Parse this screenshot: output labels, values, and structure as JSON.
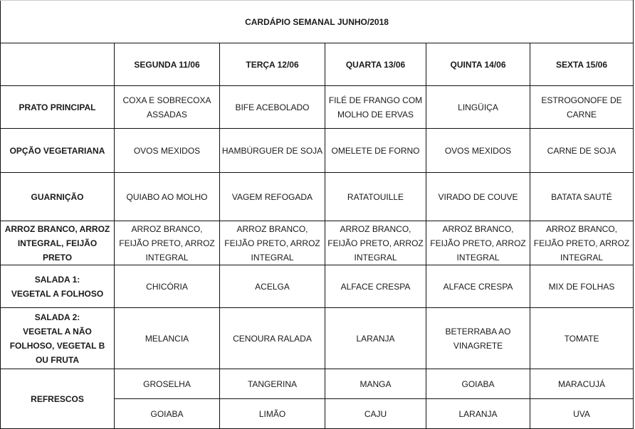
{
  "title": "CARDÁPIO SEMANAL JUNHO/2018",
  "days": [
    "SEGUNDA 11/06",
    "TERÇA 12/06",
    "QUARTA 13/06",
    "QUINTA 14/06",
    "SEXTA 15/06"
  ],
  "rows": [
    {
      "label": "PRATO PRINCIPAL",
      "cells": [
        "COXA E SOBRECOXA\nASSADAS",
        "BIFE ACEBOLADO",
        "FILÉ DE FRANGO COM\nMOLHO DE ERVAS",
        "LINGÜIÇA",
        "ESTROGONOFE DE\nCARNE"
      ]
    },
    {
      "label": "OPÇÃO VEGETARIANA",
      "cells": [
        "OVOS MEXIDOS",
        "HAMBÚRGUER DE SOJA",
        "OMELETE DE FORNO",
        "OVOS MEXIDOS",
        "CARNE DE SOJA"
      ]
    },
    {
      "label": "GUARNIÇÃO",
      "cells": [
        "QUIABO AO MOLHO",
        "VAGEM REFOGADA",
        "RATATOUILLE",
        "VIRADO DE COUVE",
        "BATATA SAUTÉ"
      ]
    },
    {
      "label": "ARROZ BRANCO, ARROZ\nINTEGRAL, FEIJÃO PRETO",
      "cells": [
        "ARROZ BRANCO,\nFEIJÃO PRETO, ARROZ\nINTEGRAL",
        "ARROZ BRANCO,\nFEIJÃO PRETO, ARROZ\nINTEGRAL",
        "ARROZ BRANCO,\nFEIJÃO PRETO, ARROZ\nINTEGRAL",
        "ARROZ BRANCO,\nFEIJÃO PRETO, ARROZ\nINTEGRAL",
        "ARROZ BRANCO,\nFEIJÃO PRETO, ARROZ\nINTEGRAL"
      ]
    },
    {
      "label": "SALADA 1:\nVEGETAL A FOLHOSO",
      "cells": [
        "CHICÓRIA",
        "ACELGA",
        "ALFACE CRESPA",
        "ALFACE CRESPA",
        "MIX DE FOLHAS"
      ]
    },
    {
      "label": "SALADA 2:\nVEGETAL A NÃO\nFOLHOSO, VEGETAL B\nOU FRUTA",
      "cells": [
        "MELANCIA",
        "CENOURA RALADA",
        "LARANJA",
        "BETERRABA AO\nVINAGRETE",
        "TOMATE"
      ]
    }
  ],
  "refrescos": {
    "label": "REFRESCOS",
    "row1": [
      "GROSELHA",
      "TANGERINA",
      "MANGA",
      "GOIABA",
      "MARACUJÁ"
    ],
    "row2": [
      "GOIABA",
      "LIMÃO",
      "CAJU",
      "LARANJA",
      "UVA"
    ]
  }
}
